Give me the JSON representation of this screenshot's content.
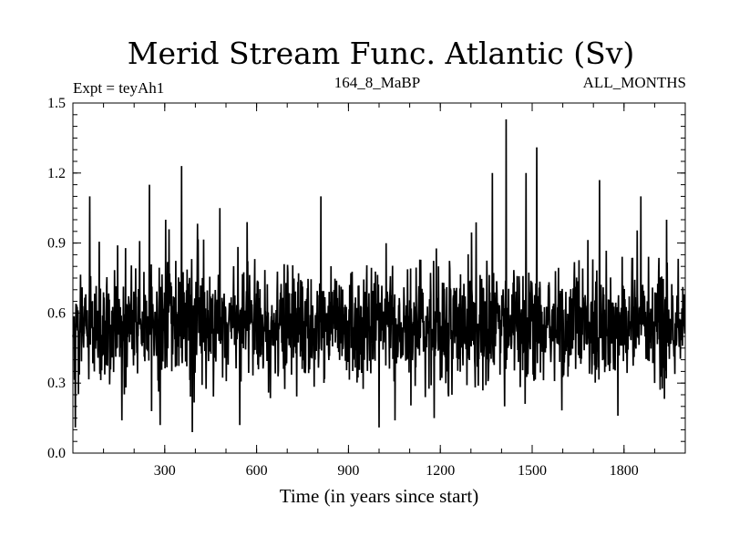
{
  "chart_data": {
    "type": "line",
    "title": "Merid Stream Func. Atlantic (Sv)",
    "subtitle_left": "Expt = teyAh1",
    "subtitle_center": "164_8_MaBP",
    "subtitle_right": "ALL_MONTHS",
    "xlabel": "Time (in years since start)",
    "ylabel": "",
    "xlim": [
      0,
      2000
    ],
    "ylim": [
      0.0,
      1.5
    ],
    "x_ticks": [
      300,
      600,
      900,
      1200,
      1500,
      1800
    ],
    "y_ticks": [
      "0.0",
      "0.3",
      "0.6",
      "0.9",
      "1.2",
      "1.5"
    ],
    "grid": false,
    "legend": "none",
    "line_color": "#000000",
    "series": [
      {
        "n_points": 2000,
        "mean": 0.54,
        "typical_range": [
          0.3,
          0.85
        ],
        "min": 0.09,
        "max": 1.43,
        "peaks": [
          {
            "x": 55,
            "y": 1.1
          },
          {
            "x": 250,
            "y": 1.15
          },
          {
            "x": 355,
            "y": 1.23
          },
          {
            "x": 480,
            "y": 1.05
          },
          {
            "x": 810,
            "y": 1.1
          },
          {
            "x": 1370,
            "y": 1.2
          },
          {
            "x": 1415,
            "y": 1.43
          },
          {
            "x": 1480,
            "y": 1.2
          },
          {
            "x": 1515,
            "y": 1.31
          },
          {
            "x": 1720,
            "y": 1.17
          },
          {
            "x": 1855,
            "y": 1.1
          }
        ],
        "troughs": [
          {
            "x": 8,
            "y": 0.11
          },
          {
            "x": 160,
            "y": 0.14
          },
          {
            "x": 285,
            "y": 0.12
          },
          {
            "x": 390,
            "y": 0.09
          },
          {
            "x": 545,
            "y": 0.12
          },
          {
            "x": 1000,
            "y": 0.11
          },
          {
            "x": 1180,
            "y": 0.15
          },
          {
            "x": 1410,
            "y": 0.2
          },
          {
            "x": 1780,
            "y": 0.16
          }
        ]
      }
    ]
  }
}
